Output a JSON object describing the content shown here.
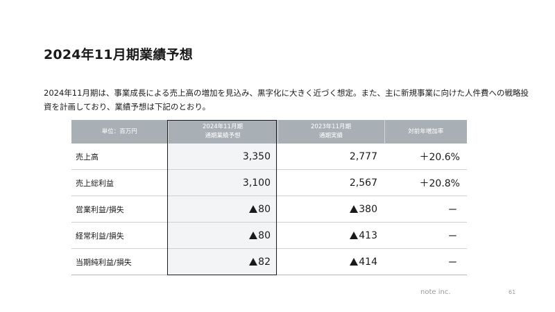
{
  "title": "2024年11月期業績予想",
  "lead": "2024年11月期は、事業成長による売上高の増加を見込み、黒字化に大きく近づく想定。また、主に新規事業に向けた人件費への戦略投資を計画しており、業績予想は下記のとおり。",
  "table": {
    "headers": {
      "unit": "単位：百万円",
      "forecast_line1": "2024年11月期",
      "forecast_line2": "通期業績予想",
      "actual_line1": "2023年11月期",
      "actual_line2": "通期実績",
      "yoy": "対前年増加率"
    },
    "rows": [
      {
        "label": "売上高",
        "forecast": "3,350",
        "actual": "2,777",
        "yoy": "＋20.6%"
      },
      {
        "label": "売上総利益",
        "forecast": "3,100",
        "actual": "2,567",
        "yoy": "＋20.8%"
      },
      {
        "label": "営業利益/損失",
        "forecast": "80",
        "actual": "380",
        "yoy": "ー"
      },
      {
        "label": "経常利益/損失",
        "forecast": "80",
        "actual": "413",
        "yoy": "ー"
      },
      {
        "label": "当期純利益/損失",
        "forecast": "82",
        "actual": "414",
        "yoy": "ー"
      }
    ],
    "negative_marker_icon": "black-triangle-up",
    "header_color": "#a8b0b5",
    "forecast_column_bg": "#f3f4f5"
  },
  "footer": {
    "brand": "note inc.",
    "page_number": "61"
  }
}
